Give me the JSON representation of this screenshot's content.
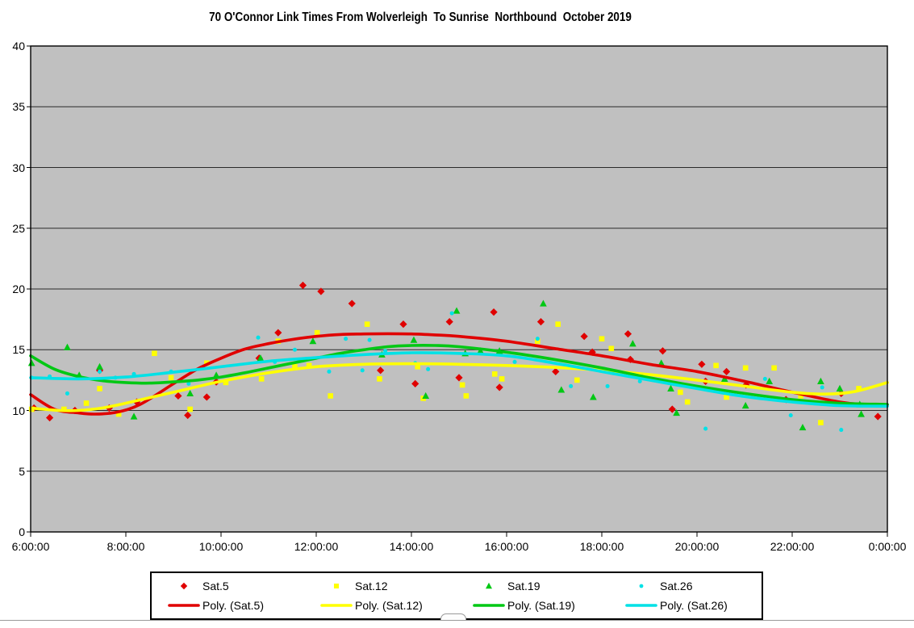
{
  "chart_data": {
    "type": "scatter",
    "title": "70 O'Connor Link Times From Wolverleigh  To Sunrise  Northbound  October 2019",
    "xlabel": "",
    "ylabel": "",
    "x_axis": {
      "tick_labels": [
        "6:00:00",
        "8:00:00",
        "10:00:00",
        "12:00:00",
        "14:00:00",
        "16:00:00",
        "18:00:00",
        "20:00:00",
        "22:00:00",
        "0:00:00"
      ],
      "tick_hours": [
        6,
        8,
        10,
        12,
        14,
        16,
        18,
        20,
        22,
        24
      ],
      "range_hours": [
        6,
        24
      ]
    },
    "y_axis": {
      "ylim": [
        0,
        40
      ],
      "tick_step": 5,
      "tick_labels": [
        "0",
        "5",
        "10",
        "15",
        "20",
        "25",
        "30",
        "35",
        "40"
      ]
    },
    "grid": "horizontal",
    "plot_bg_color": "#c0c0c0",
    "gridline_color": "#2a2a2a",
    "frame_color": "#000000",
    "legend_position": "bottom",
    "series": [
      {
        "name": "Sat.5",
        "marker": "diamond",
        "color": "#e00000",
        "points": [
          [
            6.07,
            10.2
          ],
          [
            6.4,
            9.4
          ],
          [
            6.93,
            10.0
          ],
          [
            7.45,
            13.3
          ],
          [
            7.65,
            10.2
          ],
          [
            8.23,
            10.7
          ],
          [
            9.1,
            11.2
          ],
          [
            9.3,
            9.6
          ],
          [
            9.7,
            11.1
          ],
          [
            9.9,
            12.35
          ],
          [
            10.8,
            14.3
          ],
          [
            11.2,
            16.4
          ],
          [
            11.72,
            20.3
          ],
          [
            12.1,
            19.8
          ],
          [
            12.75,
            18.8
          ],
          [
            13.35,
            13.3
          ],
          [
            13.83,
            17.1
          ],
          [
            14.08,
            12.2
          ],
          [
            14.8,
            17.3
          ],
          [
            15.0,
            12.7
          ],
          [
            15.73,
            18.1
          ],
          [
            15.85,
            11.9
          ],
          [
            16.72,
            17.3
          ],
          [
            17.03,
            13.2
          ],
          [
            17.63,
            16.1
          ],
          [
            17.8,
            14.8
          ],
          [
            18.55,
            16.3
          ],
          [
            18.6,
            14.2
          ],
          [
            19.28,
            14.9
          ],
          [
            19.48,
            10.1
          ],
          [
            20.1,
            13.8
          ],
          [
            20.18,
            12.4
          ],
          [
            20.62,
            13.2
          ],
          [
            21.03,
            12.1
          ],
          [
            21.87,
            10.9
          ],
          [
            23.03,
            11.4
          ],
          [
            23.8,
            9.5
          ]
        ]
      },
      {
        "name": "Sat.12",
        "marker": "square",
        "color": "#ffff00",
        "points": [
          [
            6.02,
            10.1
          ],
          [
            6.7,
            10.1
          ],
          [
            7.17,
            10.6
          ],
          [
            7.45,
            11.8
          ],
          [
            7.85,
            9.7
          ],
          [
            8.6,
            14.7
          ],
          [
            8.95,
            12.7
          ],
          [
            9.35,
            10.1
          ],
          [
            9.7,
            13.9
          ],
          [
            10.1,
            12.3
          ],
          [
            10.85,
            12.6
          ],
          [
            11.2,
            15.7
          ],
          [
            11.55,
            13.6
          ],
          [
            11.85,
            13.7
          ],
          [
            12.02,
            16.4
          ],
          [
            12.3,
            11.2
          ],
          [
            13.07,
            17.1
          ],
          [
            13.33,
            12.6
          ],
          [
            14.13,
            13.6
          ],
          [
            14.25,
            11.0
          ],
          [
            15.07,
            12.1
          ],
          [
            15.15,
            11.2
          ],
          [
            15.75,
            13.0
          ],
          [
            15.9,
            12.6
          ],
          [
            16.65,
            15.7
          ],
          [
            17.08,
            17.1
          ],
          [
            17.48,
            12.5
          ],
          [
            18.0,
            15.9
          ],
          [
            18.2,
            15.1
          ],
          [
            19.65,
            11.5
          ],
          [
            19.8,
            10.7
          ],
          [
            20.4,
            13.7
          ],
          [
            20.62,
            11.1
          ],
          [
            21.02,
            13.5
          ],
          [
            21.62,
            13.5
          ],
          [
            22.18,
            11.2
          ],
          [
            22.6,
            9.0
          ],
          [
            23.4,
            11.8
          ]
        ]
      },
      {
        "name": "Sat.19",
        "marker": "triangle",
        "color": "#00c814",
        "points": [
          [
            6.02,
            13.9
          ],
          [
            6.77,
            15.2
          ],
          [
            7.02,
            12.9
          ],
          [
            7.45,
            13.6
          ],
          [
            8.17,
            9.5
          ],
          [
            9.35,
            11.4
          ],
          [
            9.9,
            12.9
          ],
          [
            10.83,
            14.3
          ],
          [
            11.93,
            15.7
          ],
          [
            13.38,
            14.6
          ],
          [
            14.05,
            15.8
          ],
          [
            14.3,
            11.2
          ],
          [
            14.95,
            18.2
          ],
          [
            15.13,
            14.7
          ],
          [
            15.45,
            14.9
          ],
          [
            15.85,
            14.9
          ],
          [
            16.77,
            18.8
          ],
          [
            17.15,
            11.7
          ],
          [
            17.82,
            11.1
          ],
          [
            18.65,
            15.5
          ],
          [
            19.25,
            13.9
          ],
          [
            19.45,
            11.8
          ],
          [
            19.57,
            9.8
          ],
          [
            20.58,
            12.6
          ],
          [
            21.02,
            10.4
          ],
          [
            21.52,
            12.4
          ],
          [
            22.22,
            8.6
          ],
          [
            22.6,
            12.4
          ],
          [
            23.0,
            11.8
          ],
          [
            23.42,
            10.5
          ],
          [
            23.45,
            9.7
          ]
        ]
      },
      {
        "name": "Sat.26",
        "marker": "dot",
        "color": "#00e1e6",
        "points": [
          [
            6.02,
            12.7
          ],
          [
            6.4,
            12.8
          ],
          [
            6.77,
            11.4
          ],
          [
            7.45,
            13.2
          ],
          [
            7.78,
            12.7
          ],
          [
            8.17,
            13.0
          ],
          [
            8.95,
            13.2
          ],
          [
            9.32,
            12.2
          ],
          [
            10.78,
            16.0
          ],
          [
            11.13,
            14.0
          ],
          [
            11.55,
            15.0
          ],
          [
            12.27,
            13.2
          ],
          [
            12.62,
            15.9
          ],
          [
            12.97,
            13.3
          ],
          [
            13.12,
            15.8
          ],
          [
            13.45,
            14.9
          ],
          [
            14.08,
            13.9
          ],
          [
            14.35,
            13.4
          ],
          [
            14.85,
            18.0
          ],
          [
            16.17,
            14.0
          ],
          [
            16.65,
            15.9
          ],
          [
            17.35,
            12.0
          ],
          [
            18.12,
            12.0
          ],
          [
            18.8,
            12.4
          ],
          [
            20.18,
            8.5
          ],
          [
            21.43,
            12.6
          ],
          [
            21.97,
            9.6
          ],
          [
            22.63,
            11.9
          ],
          [
            23.03,
            8.4
          ]
        ]
      }
    ],
    "trendlines": [
      {
        "name": "Poly. (Sat.5)",
        "color": "#e00000",
        "samples": [
          [
            6,
            11.3
          ],
          [
            6.5,
            10.1
          ],
          [
            7,
            9.8
          ],
          [
            7.35,
            9.7
          ],
          [
            7.8,
            9.85
          ],
          [
            8.3,
            10.5
          ],
          [
            9,
            12.2
          ],
          [
            9.5,
            13.4
          ],
          [
            10,
            14.3
          ],
          [
            10.5,
            15.05
          ],
          [
            11,
            15.5
          ],
          [
            11.5,
            15.85
          ],
          [
            12,
            16.1
          ],
          [
            12.5,
            16.25
          ],
          [
            13,
            16.3
          ],
          [
            13.5,
            16.32
          ],
          [
            14,
            16.3
          ],
          [
            14.5,
            16.22
          ],
          [
            15,
            16.1
          ],
          [
            16,
            15.7
          ],
          [
            17,
            15.1
          ],
          [
            18,
            14.5
          ],
          [
            19,
            13.8
          ],
          [
            20,
            13.2
          ],
          [
            21,
            12.4
          ],
          [
            22,
            11.5
          ],
          [
            23,
            10.7
          ],
          [
            23.5,
            10.5
          ],
          [
            24,
            10.45
          ]
        ]
      },
      {
        "name": "Poly. (Sat.12)",
        "color": "#ffff00",
        "samples": [
          [
            6,
            10.2
          ],
          [
            6.6,
            10.0
          ],
          [
            7,
            10.0
          ],
          [
            7.5,
            10.2
          ],
          [
            8,
            10.6
          ],
          [
            9,
            11.5
          ],
          [
            10,
            12.4
          ],
          [
            11,
            13.1
          ],
          [
            12,
            13.6
          ],
          [
            13,
            13.8
          ],
          [
            14,
            13.85
          ],
          [
            15,
            13.8
          ],
          [
            16,
            13.7
          ],
          [
            17,
            13.55
          ],
          [
            18,
            13.3
          ],
          [
            19,
            12.95
          ],
          [
            20,
            12.5
          ],
          [
            21,
            12.0
          ],
          [
            22,
            11.5
          ],
          [
            22.7,
            11.35
          ],
          [
            23.3,
            11.55
          ],
          [
            24,
            12.3
          ]
        ]
      },
      {
        "name": "Poly. (Sat.19)",
        "color": "#00c814",
        "samples": [
          [
            6,
            14.5
          ],
          [
            6.5,
            13.4
          ],
          [
            7,
            12.8
          ],
          [
            7.5,
            12.45
          ],
          [
            8,
            12.3
          ],
          [
            8.5,
            12.25
          ],
          [
            9,
            12.35
          ],
          [
            9.5,
            12.5
          ],
          [
            10,
            12.75
          ],
          [
            10.5,
            13.1
          ],
          [
            11,
            13.5
          ],
          [
            11.5,
            13.9
          ],
          [
            12,
            14.3
          ],
          [
            12.5,
            14.7
          ],
          [
            13,
            15.0
          ],
          [
            13.5,
            15.25
          ],
          [
            14,
            15.35
          ],
          [
            14.5,
            15.35
          ],
          [
            15,
            15.25
          ],
          [
            16,
            14.8
          ],
          [
            17,
            14.2
          ],
          [
            18,
            13.5
          ],
          [
            19,
            12.7
          ],
          [
            20,
            12.0
          ],
          [
            21,
            11.4
          ],
          [
            22,
            10.9
          ],
          [
            23,
            10.6
          ],
          [
            24,
            10.5
          ]
        ]
      },
      {
        "name": "Poly. (Sat.26)",
        "color": "#00e1e6",
        "samples": [
          [
            6,
            12.7
          ],
          [
            7,
            12.6
          ],
          [
            8,
            12.75
          ],
          [
            9,
            13.15
          ],
          [
            10,
            13.6
          ],
          [
            11,
            14.05
          ],
          [
            12,
            14.35
          ],
          [
            13,
            14.6
          ],
          [
            14,
            14.75
          ],
          [
            15,
            14.7
          ],
          [
            16,
            14.5
          ],
          [
            17,
            13.9
          ],
          [
            18,
            13.2
          ],
          [
            19,
            12.5
          ],
          [
            20,
            11.8
          ],
          [
            21,
            11.15
          ],
          [
            22,
            10.7
          ],
          [
            23,
            10.4
          ],
          [
            24,
            10.35
          ]
        ]
      }
    ]
  },
  "geometry_note": "plot frame left 38, top 57, right 1100, bottom 659"
}
